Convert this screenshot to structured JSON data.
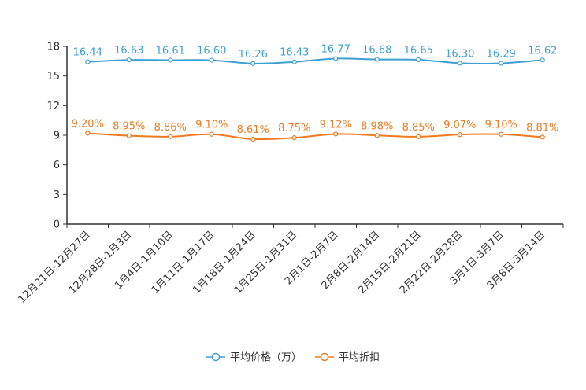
{
  "chart_data": {
    "type": "line",
    "categories": [
      "12月21日-12月27日",
      "12月28日-1月3日",
      "1月4日-1月10日",
      "1月11日-1月17日",
      "1月18日-1月24日",
      "1月25日-1月31日",
      "2月1日-2月7日",
      "2月8日-2月14日",
      "2月15日-2月21日",
      "2月22日-2月28日",
      "3月1日-3月7日",
      "3月8日-3月14日"
    ],
    "ylim": [
      0,
      18
    ],
    "yticks": [
      0,
      3,
      6,
      9,
      12,
      15,
      18
    ],
    "series": [
      {
        "name": "平均价格（万）",
        "color": "#3e9fd2",
        "values": [
          16.44,
          16.63,
          16.61,
          16.6,
          16.26,
          16.43,
          16.77,
          16.68,
          16.65,
          16.3,
          16.29,
          16.62
        ],
        "labels": [
          "16.44",
          "16.63",
          "16.61",
          "16.60",
          "16.26",
          "16.43",
          "16.77",
          "16.68",
          "16.65",
          "16.30",
          "16.29",
          "16.62"
        ]
      },
      {
        "name": "平均折扣",
        "color": "#f07a22",
        "values": [
          9.2,
          8.95,
          8.86,
          9.1,
          8.61,
          8.75,
          9.12,
          8.98,
          8.85,
          9.07,
          9.1,
          8.81
        ],
        "labels": [
          "9.20%",
          "8.95%",
          "8.86%",
          "9.10%",
          "8.61%",
          "8.75%",
          "9.12%",
          "8.98%",
          "8.85%",
          "9.07%",
          "9.10%",
          "8.81%"
        ]
      }
    ],
    "legend_position": "bottom-center",
    "grid": false
  }
}
